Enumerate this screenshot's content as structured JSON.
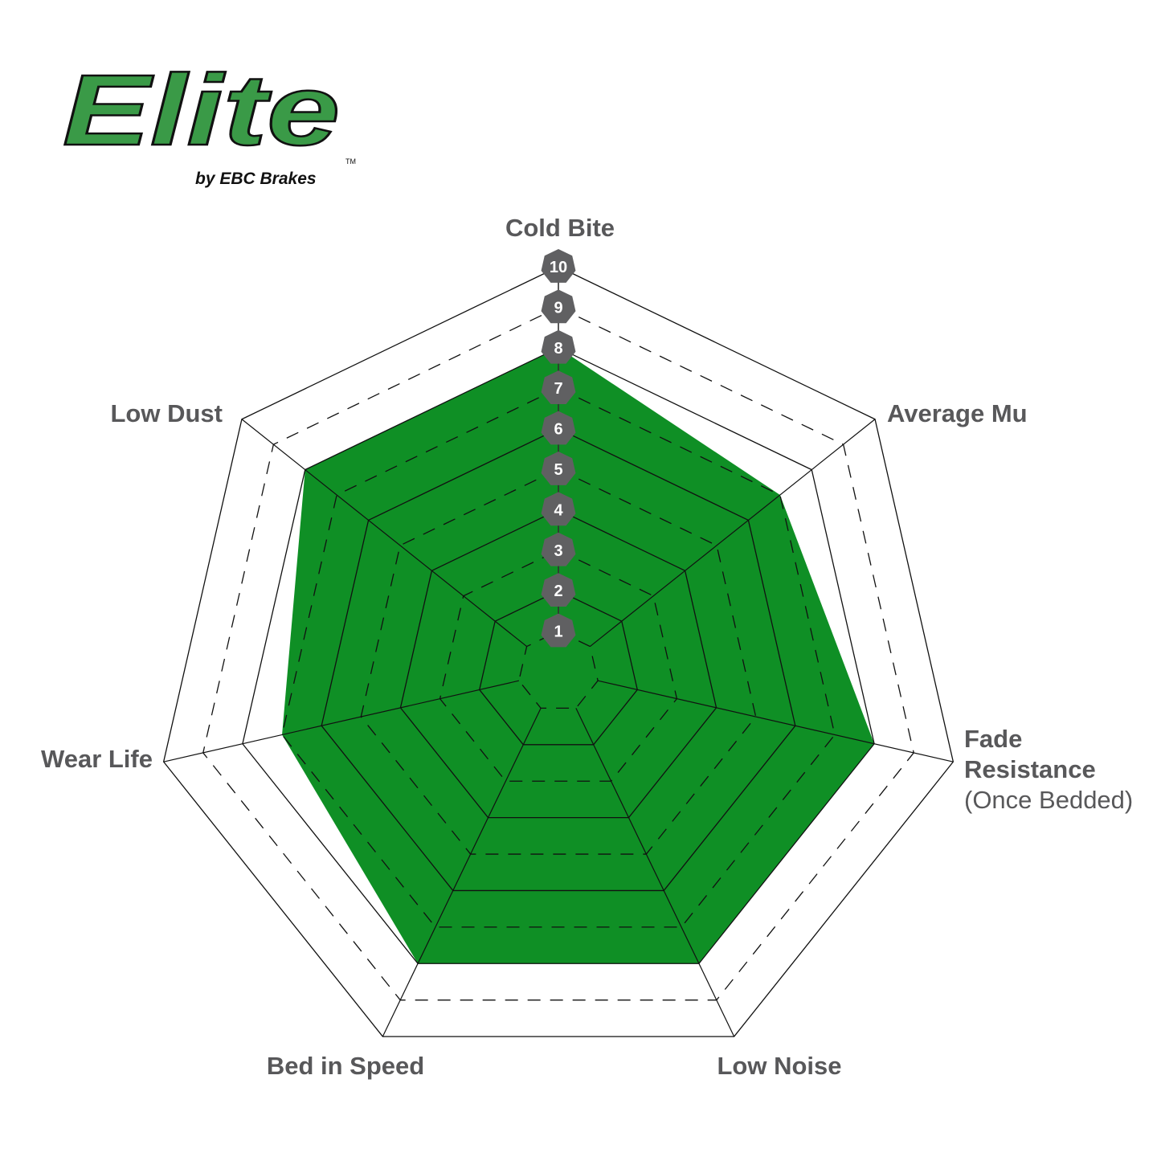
{
  "logo": {
    "brand": "Elite",
    "byline": "by EBC Brakes",
    "tm": "TM",
    "color": "#3a9a47"
  },
  "chart_data": {
    "type": "radar",
    "categories": [
      "Cold Bite",
      "Average Mu",
      "Fade Resistance",
      "Low Noise",
      "Bed in Speed",
      "Wear Life",
      "Low Dust"
    ],
    "category_sublabels": {
      "Fade Resistance": "(Once Bedded)"
    },
    "values": [
      8,
      7,
      8,
      8,
      8,
      7,
      8
    ],
    "scale": {
      "min": 0,
      "max": 10,
      "tick_labels": [
        "1",
        "2",
        "3",
        "4",
        "5",
        "6",
        "7",
        "8",
        "9",
        "10"
      ]
    },
    "fill_color": "#0f8f25",
    "badge_color": "#606062",
    "label_color": "#58585a"
  }
}
